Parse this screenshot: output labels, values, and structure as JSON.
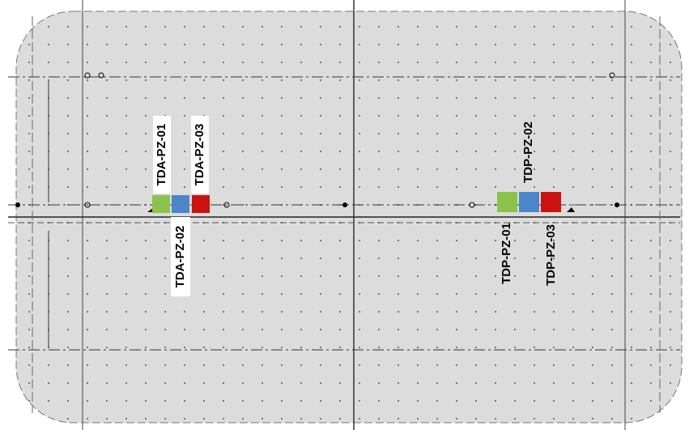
{
  "piezometers": [
    {
      "label": "TDA-PZ-01"
    },
    {
      "label": "TDA-PZ-02"
    },
    {
      "label": "TDA-PZ-03"
    },
    {
      "label": "TDP-PZ-01"
    },
    {
      "label": "TDP-PZ-02"
    },
    {
      "label": "TDP-PZ-03"
    }
  ]
}
